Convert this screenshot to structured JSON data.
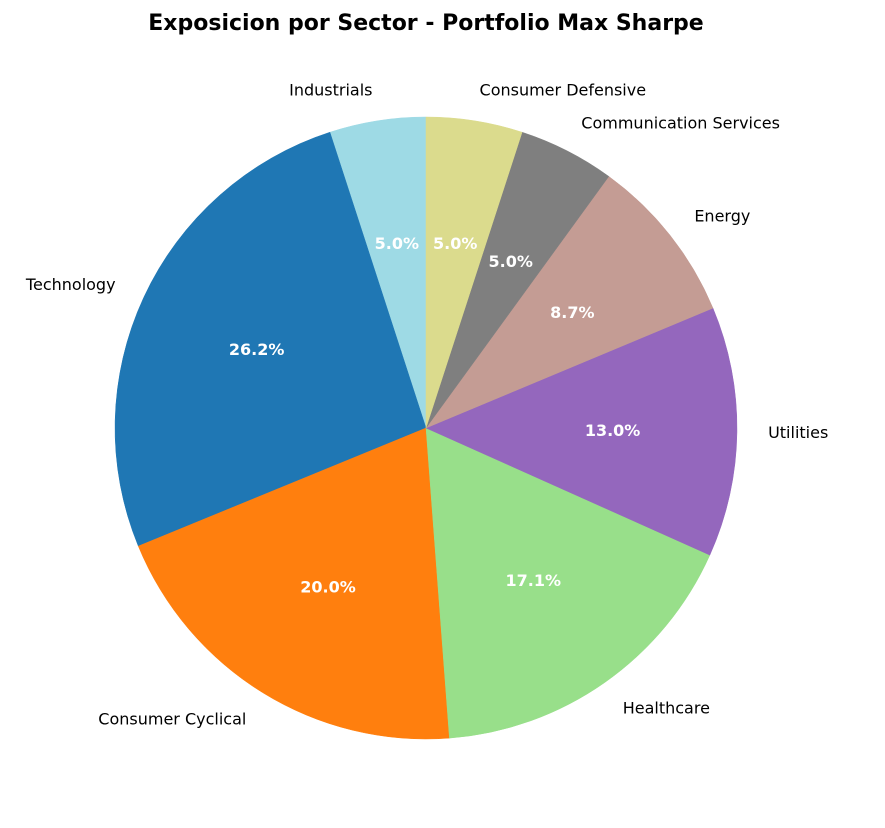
{
  "chart_data": {
    "type": "pie",
    "title": "Exposicion por Sector - Portfolio Max Sharpe",
    "start_angle_deg": 90,
    "direction": "counterclockwise",
    "slices": [
      {
        "label": "Industrials",
        "value": 5.0,
        "pct_label": "5.0%",
        "color": "#9edae5"
      },
      {
        "label": "Technology",
        "value": 26.2,
        "pct_label": "26.2%",
        "color": "#1f77b4"
      },
      {
        "label": "Consumer Cyclical",
        "value": 20.0,
        "pct_label": "20.0%",
        "color": "#ff7f0e"
      },
      {
        "label": "Healthcare",
        "value": 17.1,
        "pct_label": "17.1%",
        "color": "#98df8a"
      },
      {
        "label": "Utilities",
        "value": 13.0,
        "pct_label": "13.0%",
        "color": "#9467bd"
      },
      {
        "label": "Energy",
        "value": 8.7,
        "pct_label": "8.7%",
        "color": "#c49c94"
      },
      {
        "label": "Communication Services",
        "value": 5.0,
        "pct_label": "5.0%",
        "color": "#7f7f7f"
      },
      {
        "label": "Consumer Defensive",
        "value": 5.0,
        "pct_label": "5.0%",
        "color": "#dbdb8d"
      }
    ]
  }
}
